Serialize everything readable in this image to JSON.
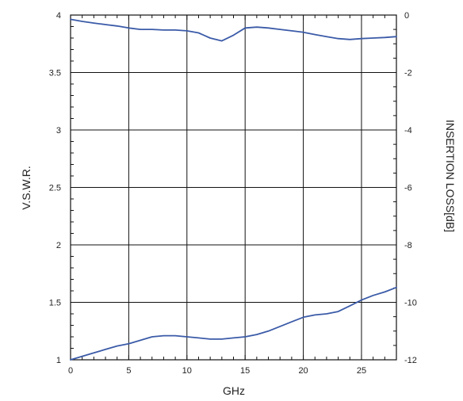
{
  "chart_data": {
    "type": "line",
    "xlabel": "GHz",
    "ylabel": "V.S.W.R.",
    "y2label": "INSERTION LOSS[dB]",
    "xlim": [
      0,
      28
    ],
    "ylim": [
      1,
      4
    ],
    "y2lim": [
      -12,
      0
    ],
    "grid": true,
    "x_ticks": [
      "0",
      "5",
      "10",
      "15",
      "20",
      "25"
    ],
    "y_ticks": [
      "1",
      "1.5",
      "2",
      "2.5",
      "3",
      "3.5",
      "4"
    ],
    "y2_ticks": [
      "-12",
      "-10",
      "-8",
      "-6",
      "-4",
      "-2",
      "0"
    ],
    "line_color": "#3b5ba8",
    "series": [
      {
        "axis": "left",
        "x": [
          0,
          1,
          2,
          3,
          4,
          5,
          6,
          7,
          8,
          9,
          10,
          11,
          12,
          13,
          14,
          15,
          16,
          17,
          18,
          19,
          20,
          21,
          22,
          23,
          24,
          25,
          26,
          27,
          28
        ],
        "values": [
          1.0,
          1.03,
          1.06,
          1.09,
          1.12,
          1.14,
          1.17,
          1.2,
          1.21,
          1.21,
          1.2,
          1.19,
          1.18,
          1.18,
          1.19,
          1.2,
          1.22,
          1.25,
          1.29,
          1.33,
          1.37,
          1.39,
          1.4,
          1.42,
          1.47,
          1.52,
          1.56,
          1.59,
          1.63
        ]
      },
      {
        "axis": "right",
        "x": [
          0,
          1,
          2,
          3,
          4,
          5,
          6,
          7,
          8,
          9,
          10,
          11,
          12,
          13,
          14,
          15,
          16,
          17,
          18,
          19,
          20,
          21,
          22,
          23,
          24,
          25,
          26,
          27,
          28
        ],
        "values": [
          -0.15,
          -0.22,
          -0.28,
          -0.33,
          -0.38,
          -0.45,
          -0.5,
          -0.5,
          -0.52,
          -0.52,
          -0.55,
          -0.62,
          -0.8,
          -0.9,
          -0.7,
          -0.45,
          -0.42,
          -0.45,
          -0.5,
          -0.55,
          -0.6,
          -0.68,
          -0.75,
          -0.82,
          -0.85,
          -0.82,
          -0.8,
          -0.78,
          -0.75
        ]
      }
    ]
  }
}
